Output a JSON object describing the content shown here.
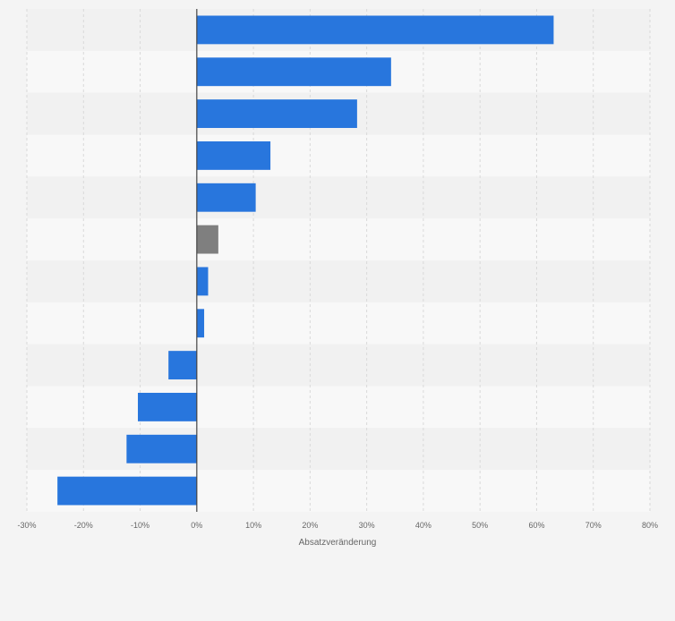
{
  "chart_data": {
    "type": "bar",
    "orientation": "horizontal",
    "xlabel": "Absatzveränderung",
    "xlim": [
      -30,
      80
    ],
    "xticks": [
      -30,
      -20,
      -10,
      0,
      10,
      20,
      30,
      40,
      50,
      60,
      70,
      80
    ],
    "tick_suffix": "%",
    "grid": true,
    "category_labels_visible": false,
    "values": [
      63,
      34.3,
      28.3,
      13,
      10.4,
      3.8,
      2,
      1.3,
      -5,
      -10.4,
      -12.4,
      -24.6
    ],
    "bar_colors": [
      "#2876dd",
      "#2876dd",
      "#2876dd",
      "#2876dd",
      "#2876dd",
      "#7f7f7f",
      "#2876dd",
      "#2876dd",
      "#2876dd",
      "#2876dd",
      "#2876dd",
      "#2876dd"
    ]
  },
  "colors": {
    "background": "#f4f4f4",
    "band_dark": "#f1f1f1",
    "band_light": "#f8f8f8",
    "bar_default": "#2876dd",
    "bar_highlight": "#7f7f7f",
    "grid": "#d9d9d9",
    "zero_line": "#444444",
    "tick_text": "#666666"
  }
}
